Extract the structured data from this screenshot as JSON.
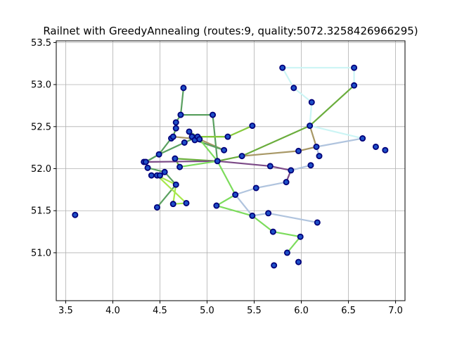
{
  "chart_data": {
    "type": "line",
    "title": "Railnet with GreedyAnnealing (routes:9, quality:5072.3258426966295)",
    "xlabel": "",
    "ylabel": "",
    "xlim": [
      3.4,
      7.1
    ],
    "ylim": [
      50.43,
      53.52
    ],
    "xticks": [
      3.5,
      4.0,
      4.5,
      5.0,
      5.5,
      6.0,
      6.5,
      7.0
    ],
    "yticks": [
      51.0,
      51.5,
      52.0,
      52.5,
      53.0,
      53.5
    ],
    "xtick_labels": [
      "3.5",
      "4.0",
      "4.5",
      "5.0",
      "5.5",
      "6.0",
      "6.5",
      "7.0"
    ],
    "ytick_labels": [
      "51.0",
      "51.5",
      "52.0",
      "52.5",
      "53.0",
      "53.5"
    ],
    "grid": true,
    "legend": "none",
    "stations": [
      [
        3.6,
        51.45
      ],
      [
        4.33,
        52.08
      ],
      [
        4.35,
        52.08
      ],
      [
        4.37,
        52.01
      ],
      [
        4.41,
        51.92
      ],
      [
        4.47,
        51.92
      ],
      [
        4.5,
        51.92
      ],
      [
        4.47,
        51.54
      ],
      [
        4.49,
        52.17
      ],
      [
        4.55,
        51.96
      ],
      [
        4.62,
        52.36
      ],
      [
        4.64,
        52.38
      ],
      [
        4.64,
        51.58
      ],
      [
        4.66,
        52.12
      ],
      [
        4.67,
        52.48
      ],
      [
        4.67,
        52.55
      ],
      [
        4.67,
        51.81
      ],
      [
        4.71,
        52.02
      ],
      [
        4.72,
        52.64
      ],
      [
        4.75,
        52.96
      ],
      [
        4.76,
        52.31
      ],
      [
        4.78,
        51.59
      ],
      [
        4.81,
        52.44
      ],
      [
        4.84,
        52.38
      ],
      [
        4.87,
        52.34
      ],
      [
        4.9,
        52.38
      ],
      [
        4.92,
        52.35
      ],
      [
        5.06,
        52.64
      ],
      [
        5.11,
        52.09
      ],
      [
        5.1,
        51.56
      ],
      [
        5.18,
        52.22
      ],
      [
        5.22,
        52.38
      ],
      [
        5.3,
        51.69
      ],
      [
        5.37,
        52.15
      ],
      [
        5.48,
        52.51
      ],
      [
        5.48,
        51.44
      ],
      [
        5.52,
        51.77
      ],
      [
        5.65,
        51.47
      ],
      [
        5.67,
        52.03
      ],
      [
        5.7,
        51.25
      ],
      [
        5.71,
        50.85
      ],
      [
        5.8,
        53.2
      ],
      [
        5.84,
        51.84
      ],
      [
        5.85,
        51.0
      ],
      [
        5.89,
        51.98
      ],
      [
        5.92,
        52.96
      ],
      [
        5.97,
        52.21
      ],
      [
        5.97,
        50.89
      ],
      [
        5.99,
        51.19
      ],
      [
        6.09,
        52.51
      ],
      [
        6.1,
        52.04
      ],
      [
        6.11,
        52.79
      ],
      [
        6.16,
        52.26
      ],
      [
        6.17,
        51.36
      ],
      [
        6.19,
        52.15
      ],
      [
        6.56,
        53.2
      ],
      [
        6.56,
        52.99
      ],
      [
        6.65,
        52.36
      ],
      [
        6.79,
        52.26
      ],
      [
        6.89,
        52.22
      ]
    ],
    "series": [
      {
        "color": "#ccf5f5",
        "points": [
          [
            5.8,
            53.2
          ],
          [
            6.56,
            53.2
          ],
          [
            6.56,
            52.99
          ]
        ]
      },
      {
        "color": "#ccf5f5",
        "points": [
          [
            5.92,
            52.96
          ],
          [
            6.11,
            52.79
          ],
          [
            6.09,
            52.51
          ],
          [
            6.65,
            52.36
          ]
        ]
      },
      {
        "color": "#ccf5f5",
        "points": [
          [
            5.8,
            53.2
          ],
          [
            5.92,
            52.96
          ]
        ]
      },
      {
        "color": "#6aad3c",
        "points": [
          [
            6.56,
            52.99
          ],
          [
            6.09,
            52.51
          ],
          [
            5.37,
            52.15
          ],
          [
            5.11,
            52.09
          ],
          [
            4.66,
            52.12
          ],
          [
            4.71,
            52.02
          ]
        ]
      },
      {
        "color": "#a89866",
        "points": [
          [
            6.09,
            52.51
          ],
          [
            6.16,
            52.26
          ],
          [
            5.97,
            52.21
          ],
          [
            5.37,
            52.15
          ]
        ]
      },
      {
        "color": "#a89866",
        "points": [
          [
            5.18,
            52.22
          ],
          [
            4.92,
            52.35
          ],
          [
            4.64,
            52.38
          ]
        ]
      },
      {
        "color": "#b0c4de",
        "points": [
          [
            6.65,
            52.36
          ],
          [
            6.16,
            52.26
          ]
        ]
      },
      {
        "color": "#b0c4de",
        "points": [
          [
            6.19,
            52.15
          ],
          [
            6.16,
            52.26
          ]
        ]
      },
      {
        "color": "#b0c4de",
        "points": [
          [
            6.1,
            52.04
          ],
          [
            5.89,
            51.98
          ],
          [
            5.84,
            51.84
          ],
          [
            5.52,
            51.77
          ],
          [
            5.3,
            51.69
          ],
          [
            5.48,
            51.44
          ],
          [
            5.65,
            51.47
          ],
          [
            6.17,
            51.36
          ]
        ]
      },
      {
        "color": "#7c4a87",
        "points": [
          [
            4.33,
            52.08
          ],
          [
            5.11,
            52.09
          ],
          [
            5.67,
            52.03
          ],
          [
            5.89,
            51.98
          ],
          [
            5.84,
            51.84
          ]
        ]
      },
      {
        "color": "#5aa060",
        "points": [
          [
            4.75,
            52.96
          ],
          [
            4.72,
            52.64
          ],
          [
            5.06,
            52.64
          ],
          [
            5.11,
            52.09
          ]
        ]
      },
      {
        "color": "#5aa060",
        "points": [
          [
            4.72,
            52.64
          ],
          [
            4.67,
            52.55
          ],
          [
            4.67,
            52.48
          ],
          [
            4.64,
            52.38
          ],
          [
            4.62,
            52.36
          ],
          [
            4.49,
            52.17
          ],
          [
            4.35,
            52.08
          ]
        ]
      },
      {
        "color": "#5aa060",
        "points": [
          [
            4.35,
            52.08
          ],
          [
            4.49,
            52.17
          ],
          [
            4.76,
            52.31
          ],
          [
            4.9,
            52.38
          ],
          [
            4.81,
            52.44
          ],
          [
            4.87,
            52.34
          ],
          [
            5.18,
            52.22
          ]
        ]
      },
      {
        "color": "#5aa060",
        "points": [
          [
            4.47,
            51.54
          ],
          [
            4.67,
            51.81
          ],
          [
            4.55,
            51.96
          ],
          [
            4.37,
            52.01
          ]
        ]
      },
      {
        "color": "#85c93c",
        "points": [
          [
            4.9,
            52.38
          ],
          [
            5.22,
            52.38
          ],
          [
            5.48,
            52.51
          ]
        ]
      },
      {
        "color": "#85c93c",
        "points": [
          [
            4.84,
            52.38
          ],
          [
            5.22,
            52.38
          ]
        ]
      },
      {
        "color": "#a8e84c",
        "points": [
          [
            4.5,
            51.92
          ],
          [
            4.41,
            51.92
          ]
        ]
      },
      {
        "color": "#a8e84c",
        "points": [
          [
            4.47,
            51.92
          ],
          [
            4.67,
            51.81
          ],
          [
            4.64,
            51.58
          ],
          [
            4.78,
            51.59
          ],
          [
            4.47,
            51.92
          ]
        ]
      },
      {
        "color": "#7cdc5c",
        "points": [
          [
            4.92,
            52.35
          ],
          [
            5.11,
            52.09
          ],
          [
            5.3,
            51.69
          ],
          [
            5.1,
            51.56
          ],
          [
            5.48,
            51.44
          ],
          [
            5.7,
            51.25
          ],
          [
            5.99,
            51.19
          ],
          [
            5.85,
            51.0
          ]
        ]
      },
      {
        "color": "#7cdc5c",
        "points": [
          [
            4.71,
            52.02
          ],
          [
            5.11,
            52.09
          ]
        ]
      }
    ]
  }
}
